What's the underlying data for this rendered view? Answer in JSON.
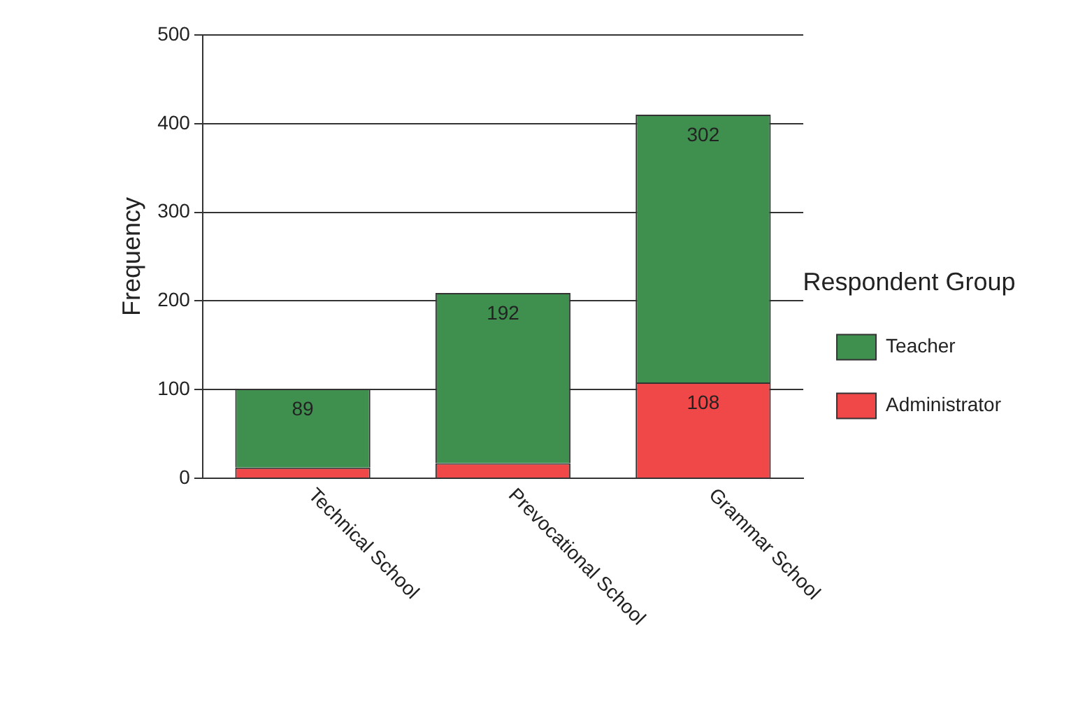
{
  "chart_data": {
    "type": "bar",
    "stacked": true,
    "ylabel": "Frequency",
    "legend_title": "Respondent Group",
    "legend": "right",
    "categories": [
      "Technical School",
      "Prevocational School",
      "Grammar School"
    ],
    "series": [
      {
        "name": "Administrator",
        "color": "#f04848",
        "values": [
          12,
          17,
          108
        ],
        "value_labels": [
          null,
          null,
          "108"
        ]
      },
      {
        "name": "Teacher",
        "color": "#3f8f4f",
        "values": [
          89,
          192,
          302
        ],
        "value_labels": [
          "89",
          "192",
          "302"
        ]
      }
    ],
    "ylim": [
      0,
      500
    ],
    "yticks": [
      0,
      100,
      200,
      300,
      400,
      500
    ],
    "grid": "y"
  }
}
